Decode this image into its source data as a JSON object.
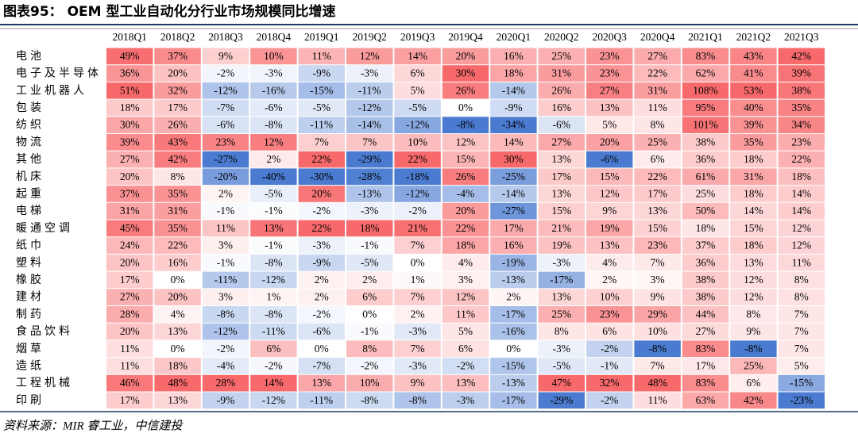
{
  "chart_data": {
    "type": "heatmap",
    "title": "图表95： OEM 型工业自动化分行业市场规模同比增速",
    "source": "资料来源：MIR 睿工业，中信建投",
    "colors": {
      "negative": "#4a7bd0",
      "zero": "#ffffff",
      "positive": "#f8696b"
    },
    "columns": [
      "2018Q1",
      "2018Q2",
      "2018Q3",
      "2018Q4",
      "2019Q1",
      "2019Q2",
      "2019Q3",
      "2019Q4",
      "2020Q1",
      "2020Q2",
      "2020Q3",
      "2020Q4",
      "2021Q1",
      "2021Q2",
      "2021Q3"
    ],
    "rows": [
      "电池",
      "电子及半导体",
      "工业机器人",
      "包装",
      "纺织",
      "物流",
      "其他",
      "机床",
      "起重",
      "电梯",
      "暖通空调",
      "纸巾",
      "塑料",
      "橡胶",
      "建材",
      "制药",
      "食品饮料",
      "烟草",
      "造纸",
      "工程机械",
      "印刷"
    ],
    "values": [
      [
        49,
        37,
        9,
        10,
        11,
        12,
        14,
        20,
        16,
        25,
        23,
        27,
        83,
        43,
        42
      ],
      [
        36,
        20,
        -2,
        -3,
        -9,
        -3,
        6,
        30,
        18,
        31,
        23,
        22,
        62,
        41,
        39
      ],
      [
        51,
        32,
        -12,
        -16,
        -15,
        -11,
        5,
        26,
        -14,
        26,
        27,
        31,
        108,
        53,
        38
      ],
      [
        18,
        17,
        -7,
        -6,
        -5,
        -12,
        -5,
        0,
        -9,
        16,
        13,
        11,
        95,
        40,
        35
      ],
      [
        30,
        26,
        -6,
        -8,
        -11,
        -14,
        -12,
        -8,
        -34,
        -6,
        5,
        8,
        101,
        39,
        34
      ],
      [
        39,
        43,
        23,
        12,
        7,
        7,
        10,
        12,
        14,
        27,
        20,
        25,
        38,
        35,
        23
      ],
      [
        27,
        42,
        -27,
        2,
        22,
        -29,
        22,
        15,
        30,
        13,
        -6,
        6,
        36,
        18,
        22
      ],
      [
        20,
        8,
        -20,
        -40,
        -30,
        -28,
        -18,
        26,
        -25,
        17,
        15,
        22,
        61,
        31,
        18
      ],
      [
        37,
        35,
        2,
        -5,
        20,
        -13,
        -12,
        -4,
        -14,
        13,
        12,
        17,
        25,
        18,
        14
      ],
      [
        31,
        31,
        -1,
        -1,
        -2,
        -3,
        -2,
        20,
        -27,
        15,
        9,
        13,
        50,
        14,
        14
      ],
      [
        45,
        35,
        11,
        13,
        22,
        18,
        21,
        22,
        17,
        21,
        19,
        15,
        18,
        15,
        12
      ],
      [
        24,
        22,
        3,
        -1,
        -3,
        -1,
        7,
        18,
        16,
        19,
        13,
        23,
        37,
        18,
        12
      ],
      [
        20,
        16,
        -1,
        -8,
        -9,
        -5,
        0,
        4,
        -19,
        -3,
        4,
        7,
        36,
        13,
        11
      ],
      [
        17,
        0,
        -11,
        -12,
        2,
        2,
        1,
        3,
        -13,
        -17,
        2,
        3,
        38,
        12,
        8
      ],
      [
        27,
        20,
        3,
        1,
        2,
        6,
        7,
        12,
        2,
        13,
        10,
        9,
        38,
        12,
        8
      ],
      [
        28,
        4,
        -8,
        -8,
        -2,
        0,
        2,
        11,
        -17,
        25,
        23,
        29,
        44,
        8,
        7
      ],
      [
        20,
        13,
        -12,
        -11,
        -6,
        -1,
        -3,
        5,
        -16,
        8,
        6,
        10,
        27,
        9,
        7
      ],
      [
        11,
        0,
        -2,
        6,
        0,
        8,
        7,
        6,
        0,
        -3,
        -2,
        -8,
        83,
        -8,
        7
      ],
      [
        11,
        18,
        -4,
        -2,
        -7,
        -2,
        -3,
        -2,
        -15,
        -5,
        -1,
        7,
        17,
        25,
        5
      ],
      [
        46,
        48,
        28,
        14,
        13,
        10,
        9,
        13,
        -13,
        47,
        32,
        48,
        83,
        6,
        -15
      ],
      [
        17,
        13,
        -9,
        -12,
        -11,
        -8,
        -8,
        -3,
        -17,
        -29,
        -2,
        11,
        63,
        42,
        -23
      ]
    ],
    "value_labels": [
      [
        "49%",
        "37%",
        "9%",
        "10%",
        "11%",
        "12%",
        "14%",
        "20%",
        "16%",
        "25%",
        "23%",
        "27%",
        "83%",
        "43%",
        "42%"
      ],
      [
        "36%",
        "20%",
        "-2%",
        "-3%",
        "-9%",
        "-3%",
        "6%",
        "30%",
        "18%",
        "31%",
        "23%",
        "22%",
        "62%",
        "41%",
        "39%"
      ],
      [
        "51%",
        "32%",
        "-12%",
        "-16%",
        "-15%",
        "-11%",
        "5%",
        "26%",
        "-14%",
        "26%",
        "27%",
        "31%",
        "108%",
        "53%",
        "38%"
      ],
      [
        "18%",
        "17%",
        "-7%",
        "-6%",
        "-5%",
        "-12%",
        "-5%",
        "0%",
        "-9%",
        "16%",
        "13%",
        "11%",
        "95%",
        "40%",
        "35%"
      ],
      [
        "30%",
        "26%",
        "-6%",
        "-8%",
        "-11%",
        "-14%",
        "-12%",
        "-8%",
        "-34%",
        "-6%",
        "5%",
        "8%",
        "101%",
        "39%",
        "34%"
      ],
      [
        "39%",
        "43%",
        "23%",
        "12%",
        "7%",
        "7%",
        "10%",
        "12%",
        "14%",
        "27%",
        "20%",
        "25%",
        "38%",
        "35%",
        "23%"
      ],
      [
        "27%",
        "42%",
        "-27%",
        "2%",
        "22%",
        "-29%",
        "22%",
        "15%",
        "30%",
        "13%",
        "-6%",
        "6%",
        "36%",
        "18%",
        "22%"
      ],
      [
        "20%",
        "8%",
        "-20%",
        "-40%",
        "-30%",
        "-28%",
        "-18%",
        "26%",
        "-25%",
        "17%",
        "15%",
        "22%",
        "61%",
        "31%",
        "18%"
      ],
      [
        "37%",
        "35%",
        "2%",
        "-5%",
        "20%",
        "-13%",
        "-12%",
        "-4%",
        "-14%",
        "13%",
        "12%",
        "17%",
        "25%",
        "18%",
        "14%"
      ],
      [
        "31%",
        "31%",
        "-1%",
        "-1%",
        "-2%",
        "-3%",
        "-2%",
        "20%",
        "-27%",
        "15%",
        "9%",
        "13%",
        "50%",
        "14%",
        "14%"
      ],
      [
        "45%",
        "35%",
        "11%",
        "13%",
        "22%",
        "18%",
        "21%",
        "22%",
        "17%",
        "21%",
        "19%",
        "15%",
        "18%",
        "15%",
        "12%"
      ],
      [
        "24%",
        "22%",
        "3%",
        "-1%",
        "-3%",
        "-1%",
        "7%",
        "18%",
        "16%",
        "19%",
        "13%",
        "23%",
        "37%",
        "18%",
        "12%"
      ],
      [
        "20%",
        "16%",
        "-1%",
        "-8%",
        "-9%",
        "-5%",
        "0%",
        "4%",
        "-19%",
        "-3%",
        "4%",
        "7%",
        "36%",
        "13%",
        "11%"
      ],
      [
        "17%",
        "0%",
        "-11%",
        "-12%",
        "2%",
        "2%",
        "1%",
        "3%",
        "-13%",
        "-17%",
        "2%",
        "3%",
        "38%",
        "12%",
        "8%"
      ],
      [
        "27%",
        "20%",
        "3%",
        "1%",
        "2%",
        "6%",
        "7%",
        "12%",
        "2%",
        "13%",
        "10%",
        "9%",
        "38%",
        "12%",
        "8%"
      ],
      [
        "28%",
        "4%",
        "-8%",
        "-8%",
        "-2%",
        "0%",
        "2%",
        "11%",
        "-17%",
        "25%",
        "23%",
        "29%",
        "44%",
        "8%",
        "7%"
      ],
      [
        "20%",
        "13%",
        "-12%",
        "-11%",
        "-6%",
        "-1%",
        "-3%",
        "5%",
        "-16%",
        "8%",
        "6%",
        "10%",
        "27%",
        "9%",
        "7%"
      ],
      [
        "11%",
        "0%",
        "-2%",
        "6%",
        "0%",
        "8%",
        "7%",
        "6%",
        "0%",
        "-3%",
        "-2%",
        "-8%",
        "83%",
        "-8%",
        "7%"
      ],
      [
        "11%",
        "18%",
        "-4%",
        "-2%",
        "-7%",
        "-2%",
        "-3%",
        "-2%",
        "-15%",
        "-5%",
        "-1%",
        "7%",
        "17%",
        "25%",
        "5%"
      ],
      [
        "46%",
        "48%",
        "28%",
        "14%",
        "13%",
        "10%",
        "9%",
        "13%",
        "-13%",
        "47%",
        "32%",
        "48%",
        "83%",
        "6%",
        "-15%"
      ],
      [
        "17%",
        "13%",
        "-9%",
        "-12%",
        "-11%",
        "-8%",
        "-8%",
        "-3%",
        "-17%",
        "-29%",
        "-2%",
        "11%",
        "63%",
        "42%",
        "-23%"
      ]
    ]
  }
}
